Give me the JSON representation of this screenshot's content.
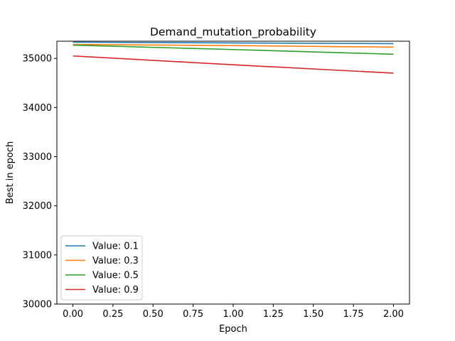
{
  "chart_data": {
    "type": "line",
    "title": "Demand_mutation_probability",
    "xlabel": "Epoch",
    "ylabel": "Best in epoch",
    "xlim": [
      -0.1,
      2.1
    ],
    "ylim": [
      30000,
      35350
    ],
    "x_ticks": [
      0.0,
      0.25,
      0.5,
      0.75,
      1.0,
      1.25,
      1.5,
      1.75,
      2.0
    ],
    "x_tick_labels": [
      "0.00",
      "0.25",
      "0.50",
      "0.75",
      "1.00",
      "1.25",
      "1.50",
      "1.75",
      "2.00"
    ],
    "y_ticks": [
      30000,
      31000,
      32000,
      33000,
      34000,
      35000
    ],
    "y_tick_labels": [
      "30000",
      "31000",
      "32000",
      "33000",
      "34000",
      "35000"
    ],
    "x": [
      0,
      1,
      2
    ],
    "series": [
      {
        "name": "Value: 0.1",
        "color": "#1f77b4",
        "values": [
          35330,
          35315,
          35300
        ]
      },
      {
        "name": "Value: 0.3",
        "color": "#ff7f0e",
        "values": [
          35285,
          35260,
          35230
        ]
      },
      {
        "name": "Value: 0.5",
        "color": "#2ca02c",
        "values": [
          35270,
          35180,
          35085
        ]
      },
      {
        "name": "Value: 0.9",
        "color": "#d62728",
        "values": [
          35050,
          34870,
          34700
        ]
      }
    ],
    "grid": false,
    "legend_position": "lower-left"
  }
}
